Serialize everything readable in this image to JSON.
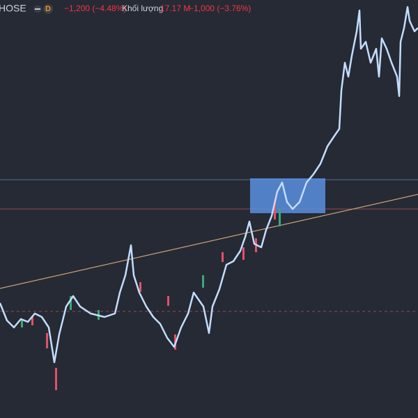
{
  "header": {
    "symbol": "HOSE",
    "interval": "D",
    "change": "−1,200 (−4.48%)",
    "volume_label": "Khối lượng",
    "volume": "17.17 M",
    "volume_change": "−1,000 (−3.76%)"
  }
}
